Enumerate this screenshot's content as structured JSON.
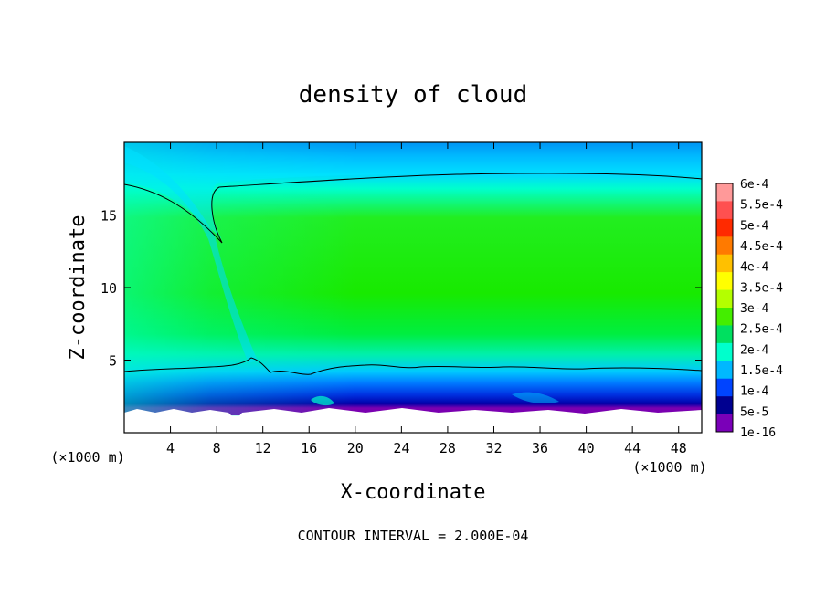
{
  "chart_data": {
    "type": "heatmap",
    "title": "density of cloud",
    "xlabel": "X-coordinate",
    "ylabel": "Z-coordinate",
    "x_unit_left": "(×1000 m)",
    "x_unit_right": "(×1000 m)",
    "footer": "CONTOUR INTERVAL = 2.000E-04",
    "xlim": [
      0,
      50
    ],
    "ylim": [
      0,
      20
    ],
    "xticks": [
      4,
      8,
      12,
      16,
      20,
      24,
      28,
      32,
      36,
      40,
      44,
      48
    ],
    "yticks": [
      5,
      10,
      15
    ],
    "xtick_labels": [
      "4",
      "8",
      "12",
      "16",
      "20",
      "24",
      "28",
      "32",
      "36",
      "40",
      "44",
      "48"
    ],
    "ytick_labels": [
      "5",
      "10",
      "15"
    ],
    "colorbar": {
      "labels": [
        "6e-4",
        "5.5e-4",
        "5e-4",
        "4.5e-4",
        "4e-4",
        "3.5e-4",
        "3e-4",
        "2.5e-4",
        "2e-4",
        "1.5e-4",
        "1e-4",
        "5e-5",
        "1e-16"
      ],
      "colors": [
        "#ff9999",
        "#ff5050",
        "#ff2a00",
        "#ff7a00",
        "#ffc000",
        "#ffff00",
        "#b4ff00",
        "#44ee00",
        "#00e060",
        "#00ffcc",
        "#00b8ff",
        "#0044ff",
        "#000090",
        "#7a00b8"
      ]
    },
    "contour_levels": [
      0.0002
    ],
    "fields": {
      "top_boundary_km": 20,
      "cloud_base_km": 1.5,
      "contour_upper_km": 17.7,
      "contour_lower_km": 4.5,
      "colors": {
        "core": "#22ee00",
        "edge": "#00ffbb",
        "top": "#0060ff",
        "top_edge": "#00c8ff",
        "base": "#0000c8",
        "base_edge": "#7a00b0"
      }
    }
  }
}
